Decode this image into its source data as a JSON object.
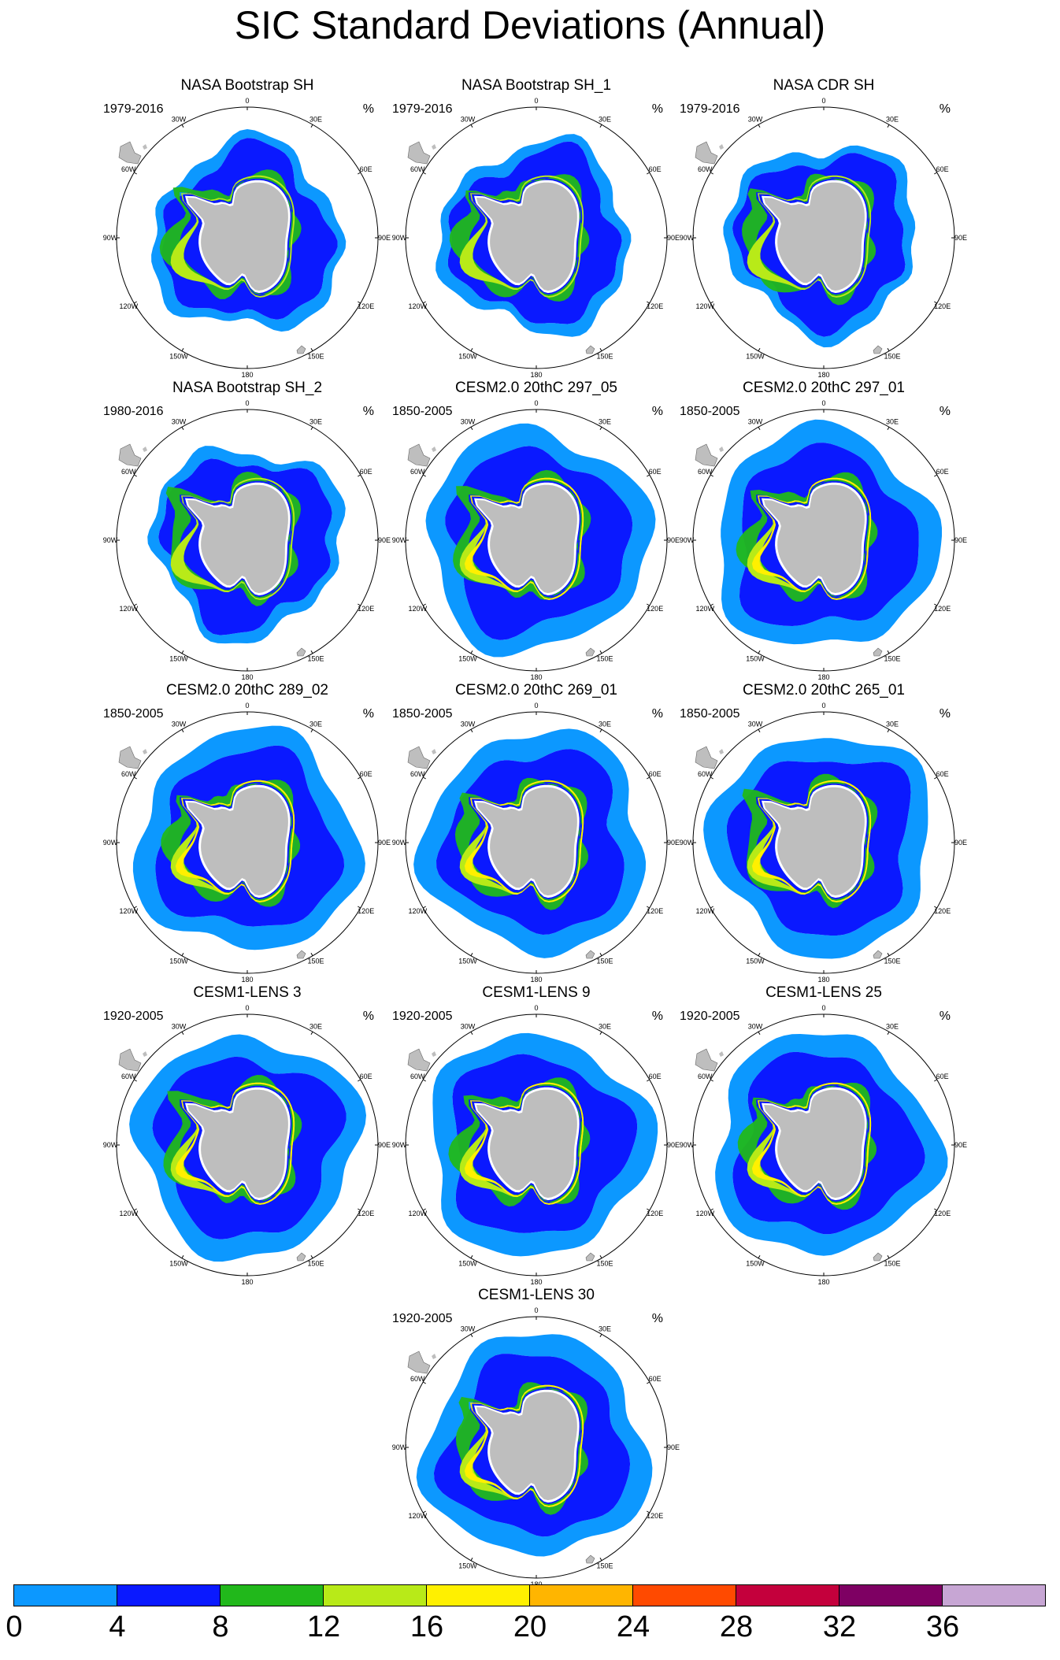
{
  "title": "SIC Standard Deviations (Annual)",
  "unit": "%",
  "longitude_labels": [
    "0",
    "30E",
    "60E",
    "90E",
    "120E",
    "150E",
    "180",
    "150W",
    "120W",
    "90W",
    "60W",
    "30W"
  ],
  "panels": [
    {
      "title": "NASA Bootstrap SH",
      "period": "1979-2016",
      "kind": "obs",
      "variant": 0
    },
    {
      "title": "NASA Bootstrap SH_1",
      "period": "1979-2016",
      "kind": "obs",
      "variant": 1
    },
    {
      "title": "NASA CDR SH",
      "period": "1979-2016",
      "kind": "obs",
      "variant": 2
    },
    {
      "title": "NASA Bootstrap SH_2",
      "period": "1980-2016",
      "kind": "obs",
      "variant": 3
    },
    {
      "title": "CESM2.0 20thC 297_05",
      "period": "1850-2005",
      "kind": "model",
      "variant": 0
    },
    {
      "title": "CESM2.0 20thC 297_01",
      "period": "1850-2005",
      "kind": "model",
      "variant": 1
    },
    {
      "title": "CESM2.0 20thC 289_02",
      "period": "1850-2005",
      "kind": "model",
      "variant": 2
    },
    {
      "title": "CESM2.0 20thC 269_01",
      "period": "1850-2005",
      "kind": "model",
      "variant": 3
    },
    {
      "title": "CESM2.0 20thC 265_01",
      "period": "1850-2005",
      "kind": "model",
      "variant": 4
    },
    {
      "title": "CESM1-LENS 3",
      "period": "1920-2005",
      "kind": "lens",
      "variant": 0
    },
    {
      "title": "CESM1-LENS 9",
      "period": "1920-2005",
      "kind": "lens",
      "variant": 1
    },
    {
      "title": "CESM1-LENS 25",
      "period": "1920-2005",
      "kind": "lens",
      "variant": 2
    },
    {
      "title": "CESM1-LENS 30",
      "period": "1920-2005",
      "kind": "lens",
      "variant": 3
    }
  ],
  "colorbar": {
    "labels": [
      "0",
      "4",
      "8",
      "12",
      "16",
      "20",
      "24",
      "28",
      "32",
      "36"
    ],
    "colors": [
      "#0c98ff",
      "#0a19ff",
      "#21b81b",
      "#b8ea18",
      "#fff000",
      "#ffb500",
      "#ff4a00",
      "#c4003c",
      "#7e0063",
      "#c7a6d4"
    ]
  },
  "land_color": "#bebebe"
}
